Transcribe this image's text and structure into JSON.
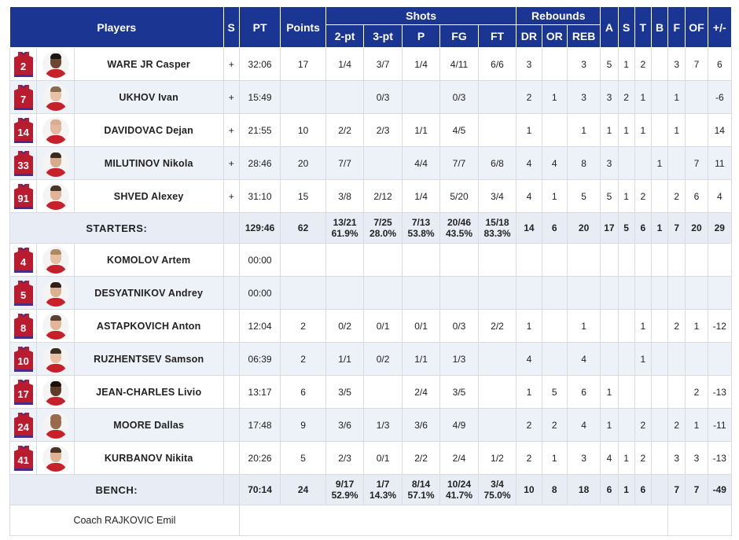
{
  "header": {
    "players": "Players",
    "s": "S",
    "pt": "PT",
    "points": "Points",
    "shots": "Shots",
    "rebounds": "Rebounds",
    "a": "A",
    "st": "S",
    "t": "T",
    "b": "B",
    "f": "F",
    "of": "OF",
    "pm": "+/-",
    "two_pt": "2-pt",
    "three_pt": "3-pt",
    "p": "P",
    "fg": "FG",
    "ft": "FT",
    "dr": "DR",
    "or": "OR",
    "reb": "REB"
  },
  "colors": {
    "header_bg": "#1b3593",
    "jersey": "#b81c2e",
    "row_alt": "#edf1f8"
  },
  "starters": [
    {
      "num": "2",
      "name": "WARE JR Casper",
      "s": "+",
      "pt": "32:06",
      "points": "17",
      "two": "1/4",
      "three": "3/7",
      "p": "1/4",
      "fg": "4/11",
      "ft": "6/6",
      "dr": "3",
      "or": "",
      "reb": "3",
      "a": "5",
      "st": "1",
      "t": "2",
      "b": "",
      "f": "3",
      "of": "7",
      "pm": "6",
      "skin": "#6b4630",
      "hair": "#1f1510"
    },
    {
      "num": "7",
      "name": "UKHOV Ivan",
      "s": "+",
      "pt": "15:49",
      "points": "",
      "two": "",
      "three": "0/3",
      "p": "",
      "fg": "0/3",
      "ft": "",
      "dr": "2",
      "or": "1",
      "reb": "3",
      "a": "3",
      "st": "2",
      "t": "1",
      "b": "",
      "f": "1",
      "of": "",
      "pm": "-6",
      "skin": "#e9c2a6",
      "hair": "#8a6a4c"
    },
    {
      "num": "14",
      "name": "DAVIDOVAC Dejan",
      "s": "+",
      "pt": "21:55",
      "points": "10",
      "two": "2/2",
      "three": "2/3",
      "p": "1/1",
      "fg": "4/5",
      "ft": "",
      "dr": "1",
      "or": "",
      "reb": "1",
      "a": "1",
      "st": "1",
      "t": "1",
      "b": "",
      "f": "1",
      "of": "",
      "pm": "14",
      "skin": "#e3b89c",
      "hair": "#d9ad92"
    },
    {
      "num": "33",
      "name": "MILUTINOV Nikola",
      "s": "+",
      "pt": "28:46",
      "points": "20",
      "two": "7/7",
      "three": "",
      "p": "4/4",
      "fg": "7/7",
      "ft": "6/8",
      "dr": "4",
      "or": "4",
      "reb": "8",
      "a": "3",
      "st": "",
      "t": "",
      "b": "1",
      "f": "",
      "of": "7",
      "pm": "11",
      "skin": "#d9aa8c",
      "hair": "#3a2a20"
    },
    {
      "num": "91",
      "name": "SHVED Alexey",
      "s": "+",
      "pt": "31:10",
      "points": "15",
      "two": "3/8",
      "three": "2/12",
      "p": "1/4",
      "fg": "5/20",
      "ft": "3/4",
      "dr": "4",
      "or": "1",
      "reb": "5",
      "a": "5",
      "st": "1",
      "t": "2",
      "b": "",
      "f": "2",
      "of": "6",
      "pm": "4",
      "skin": "#e0b496",
      "hair": "#4a3526"
    }
  ],
  "starters_total": {
    "label": "STARTERS:",
    "pt": "129:46",
    "points": "62",
    "two": "13/21",
    "two_pct": "61.9%",
    "three": "7/25",
    "three_pct": "28.0%",
    "p": "7/13",
    "p_pct": "53.8%",
    "fg": "20/46",
    "fg_pct": "43.5%",
    "ft": "15/18",
    "ft_pct": "83.3%",
    "dr": "14",
    "or": "6",
    "reb": "20",
    "a": "17",
    "st": "5",
    "t": "6",
    "b": "1",
    "f": "7",
    "of": "20",
    "pm": "29"
  },
  "bench": [
    {
      "num": "4",
      "name": "KOMOLOV Artem",
      "s": "",
      "pt": "00:00",
      "points": "",
      "two": "",
      "three": "",
      "p": "",
      "fg": "",
      "ft": "",
      "dr": "",
      "or": "",
      "reb": "",
      "a": "",
      "st": "",
      "t": "",
      "b": "",
      "f": "",
      "of": "",
      "pm": "",
      "skin": "#e6bea2",
      "hair": "#b08860"
    },
    {
      "num": "5",
      "name": "DESYATNIKOV Andrey",
      "s": "",
      "pt": "00:00",
      "points": "",
      "two": "",
      "three": "",
      "p": "",
      "fg": "",
      "ft": "",
      "dr": "",
      "or": "",
      "reb": "",
      "a": "",
      "st": "",
      "t": "",
      "b": "",
      "f": "",
      "of": "",
      "pm": "",
      "skin": "#dcb090",
      "hair": "#2e2018"
    },
    {
      "num": "8",
      "name": "ASTAPKOVICH Anton",
      "s": "",
      "pt": "12:04",
      "points": "2",
      "two": "0/2",
      "three": "0/1",
      "p": "0/1",
      "fg": "0/3",
      "ft": "2/2",
      "dr": "1",
      "or": "",
      "reb": "1",
      "a": "",
      "st": "",
      "t": "1",
      "b": "",
      "f": "2",
      "of": "1",
      "pm": "-12",
      "skin": "#e2b698",
      "hair": "#5a4030"
    },
    {
      "num": "10",
      "name": "RUZHENTSEV Samson",
      "s": "",
      "pt": "06:39",
      "points": "2",
      "two": "1/1",
      "three": "0/2",
      "p": "1/1",
      "fg": "1/3",
      "ft": "",
      "dr": "4",
      "or": "",
      "reb": "4",
      "a": "",
      "st": "",
      "t": "1",
      "b": "",
      "f": "",
      "of": "",
      "pm": "",
      "skin": "#e8c0a4",
      "hair": "#3c2c22"
    },
    {
      "num": "17",
      "name": "JEAN-CHARLES Livio",
      "s": "",
      "pt": "13:17",
      "points": "6",
      "two": "3/5",
      "three": "",
      "p": "2/4",
      "fg": "3/5",
      "ft": "",
      "dr": "1",
      "or": "5",
      "reb": "6",
      "a": "1",
      "st": "",
      "t": "",
      "b": "",
      "f": "",
      "of": "2",
      "pm": "-13",
      "skin": "#5e3c28",
      "hair": "#1a1008"
    },
    {
      "num": "24",
      "name": "MOORE Dallas",
      "s": "",
      "pt": "17:48",
      "points": "9",
      "two": "3/6",
      "three": "1/3",
      "p": "3/6",
      "fg": "4/9",
      "ft": "",
      "dr": "2",
      "or": "2",
      "reb": "4",
      "a": "1",
      "st": "",
      "t": "2",
      "b": "",
      "f": "2",
      "of": "1",
      "pm": "-11",
      "skin": "#9a6a4c",
      "hair": "#9a6a4c"
    },
    {
      "num": "41",
      "name": "KURBANOV Nikita",
      "s": "",
      "pt": "20:26",
      "points": "5",
      "two": "2/3",
      "three": "0/1",
      "p": "2/2",
      "fg": "2/4",
      "ft": "1/2",
      "dr": "2",
      "or": "1",
      "reb": "3",
      "a": "4",
      "st": "1",
      "t": "2",
      "b": "",
      "f": "3",
      "of": "3",
      "pm": "-13",
      "skin": "#dfb294",
      "hair": "#4a3425"
    }
  ],
  "bench_total": {
    "label": "BENCH:",
    "pt": "70:14",
    "points": "24",
    "two": "9/17",
    "two_pct": "52.9%",
    "three": "1/7",
    "three_pct": "14.3%",
    "p": "8/14",
    "p_pct": "57.1%",
    "fg": "10/24",
    "fg_pct": "41.7%",
    "ft": "3/4",
    "ft_pct": "75.0%",
    "dr": "10",
    "or": "8",
    "reb": "18",
    "a": "6",
    "st": "1",
    "t": "6",
    "b": "",
    "f": "7",
    "of": "7",
    "pm": "-49"
  },
  "coach": {
    "label": "Coach RAJKOVIC Emil"
  }
}
